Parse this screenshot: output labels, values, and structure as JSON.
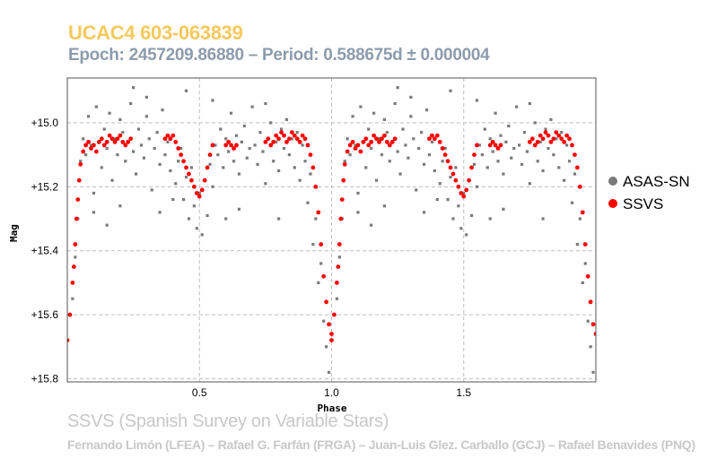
{
  "header": {
    "title": "UCAC4 603-063839",
    "subtitle": "Epoch: 2457209.86880 – Period: 0.588675d ± 0.000004",
    "title_color": "#f5c95b",
    "subtitle_color": "#8c9cad"
  },
  "footer": {
    "line1": "SSVS (Spanish Survey on Variable Stars)",
    "line2": "Fernando Limón (LFEA) – Rafael G. Farfán (FRGA) – Juan-Luis Glez. Carballo (GCJ) – Rafael Benavides (PNQ)",
    "color": "#c8c8c8"
  },
  "chart_data": {
    "type": "scatter",
    "xlabel": "Phase",
    "ylabel": "Mag",
    "xlim": [
      0.0,
      2.0
    ],
    "ylim": [
      15.81,
      14.86
    ],
    "y_inverted": true,
    "x_ticks": [
      0.5,
      1.0,
      1.5
    ],
    "x_tick_labels": [
      "0.5",
      "1.0",
      "1.5"
    ],
    "y_ticks": [
      15.0,
      15.2,
      15.4,
      15.6,
      15.8
    ],
    "y_tick_labels": [
      "+15.0",
      "+15.2",
      "+15.4",
      "+15.6",
      "+15.8"
    ],
    "grid": true,
    "legend_position": "right",
    "series": [
      {
        "name": "ASAS-SN",
        "color": "#7a7a7a",
        "marker": "square",
        "points": [
          [
            0.02,
            15.55
          ],
          [
            0.03,
            15.42
          ],
          [
            0.04,
            15.3
          ],
          [
            0.05,
            15.12
          ],
          [
            0.06,
            15.05
          ],
          [
            0.07,
            15.1
          ],
          [
            0.08,
            14.98
          ],
          [
            0.09,
            15.07
          ],
          [
            0.1,
            15.22
          ],
          [
            0.11,
            14.95
          ],
          [
            0.12,
            15.06
          ],
          [
            0.13,
            15.14
          ],
          [
            0.14,
            15.02
          ],
          [
            0.15,
            15.08
          ],
          [
            0.16,
            14.97
          ],
          [
            0.17,
            15.18
          ],
          [
            0.18,
            15.05
          ],
          [
            0.19,
            15.1
          ],
          [
            0.2,
            14.99
          ],
          [
            0.21,
            15.03
          ],
          [
            0.22,
            15.12
          ],
          [
            0.23,
            15.06
          ],
          [
            0.24,
            14.94
          ],
          [
            0.25,
            15.09
          ],
          [
            0.26,
            15.16
          ],
          [
            0.27,
            15.02
          ],
          [
            0.28,
            15.07
          ],
          [
            0.29,
            15.11
          ],
          [
            0.3,
            14.98
          ],
          [
            0.31,
            15.05
          ],
          [
            0.32,
            15.21
          ],
          [
            0.33,
            15.08
          ],
          [
            0.34,
            15.03
          ],
          [
            0.35,
            15.13
          ],
          [
            0.36,
            14.96
          ],
          [
            0.37,
            15.1
          ],
          [
            0.38,
            15.06
          ],
          [
            0.39,
            15.15
          ],
          [
            0.4,
            15.04
          ],
          [
            0.41,
            15.19
          ],
          [
            0.42,
            15.12
          ],
          [
            0.43,
            15.08
          ],
          [
            0.44,
            15.24
          ],
          [
            0.45,
            15.17
          ],
          [
            0.46,
            15.3
          ],
          [
            0.47,
            15.14
          ],
          [
            0.48,
            15.26
          ],
          [
            0.49,
            15.33
          ],
          [
            0.5,
            15.22
          ],
          [
            0.51,
            15.35
          ],
          [
            0.52,
            15.18
          ],
          [
            0.53,
            15.29
          ],
          [
            0.54,
            15.13
          ],
          [
            0.55,
            15.2
          ],
          [
            0.56,
            15.07
          ],
          [
            0.57,
            15.1
          ],
          [
            0.58,
            15.02
          ],
          [
            0.59,
            15.14
          ],
          [
            0.6,
            15.05
          ],
          [
            0.61,
            15.09
          ],
          [
            0.62,
            14.97
          ],
          [
            0.63,
            15.12
          ],
          [
            0.64,
            15.04
          ],
          [
            0.65,
            15.16
          ],
          [
            0.66,
            15.06
          ],
          [
            0.67,
            15.01
          ],
          [
            0.68,
            15.11
          ],
          [
            0.69,
            15.08
          ],
          [
            0.7,
            14.95
          ],
          [
            0.71,
            15.07
          ],
          [
            0.72,
            15.13
          ],
          [
            0.73,
            15.03
          ],
          [
            0.74,
            15.09
          ],
          [
            0.75,
            15.19
          ],
          [
            0.76,
            15.05
          ],
          [
            0.77,
            15.0
          ],
          [
            0.78,
            15.12
          ],
          [
            0.79,
            15.06
          ],
          [
            0.8,
            15.15
          ],
          [
            0.81,
            15.02
          ],
          [
            0.82,
            15.08
          ],
          [
            0.83,
            14.99
          ],
          [
            0.84,
            15.1
          ],
          [
            0.85,
            15.05
          ],
          [
            0.86,
            15.14
          ],
          [
            0.87,
            15.03
          ],
          [
            0.88,
            15.18
          ],
          [
            0.89,
            15.07
          ],
          [
            0.9,
            15.12
          ],
          [
            0.91,
            15.25
          ],
          [
            0.92,
            15.16
          ],
          [
            0.93,
            15.38
          ],
          [
            0.94,
            15.3
          ],
          [
            0.95,
            15.5
          ],
          [
            0.96,
            15.44
          ],
          [
            0.97,
            15.62
          ],
          [
            0.98,
            15.7
          ],
          [
            0.99,
            15.78
          ],
          [
            0.2,
            15.26
          ],
          [
            0.35,
            15.28
          ],
          [
            0.6,
            15.3
          ],
          [
            0.15,
            15.32
          ],
          [
            0.4,
            15.24
          ],
          [
            0.65,
            15.27
          ],
          [
            0.8,
            15.3
          ],
          [
            0.1,
            15.28
          ],
          [
            0.3,
            14.92
          ],
          [
            0.55,
            14.93
          ],
          [
            0.75,
            14.94
          ],
          [
            0.45,
            14.9
          ],
          [
            0.25,
            14.89
          ]
        ]
      },
      {
        "name": "SSVS",
        "color": "#ff0000",
        "marker": "circle",
        "points": [
          [
            0.0,
            15.68
          ],
          [
            0.01,
            15.6
          ],
          [
            0.02,
            15.5
          ],
          [
            0.025,
            15.45
          ],
          [
            0.03,
            15.38
          ],
          [
            0.035,
            15.3
          ],
          [
            0.04,
            15.24
          ],
          [
            0.045,
            15.18
          ],
          [
            0.05,
            15.13
          ],
          [
            0.06,
            15.09
          ],
          [
            0.07,
            15.07
          ],
          [
            0.08,
            15.06
          ],
          [
            0.09,
            15.08
          ],
          [
            0.1,
            15.07
          ],
          [
            0.11,
            15.09
          ],
          [
            0.12,
            15.06
          ],
          [
            0.13,
            15.05
          ],
          [
            0.14,
            15.07
          ],
          [
            0.15,
            15.06
          ],
          [
            0.16,
            15.04
          ],
          [
            0.17,
            15.05
          ],
          [
            0.18,
            15.06
          ],
          [
            0.19,
            15.05
          ],
          [
            0.2,
            15.04
          ],
          [
            0.21,
            15.06
          ],
          [
            0.22,
            15.07
          ],
          [
            0.23,
            15.06
          ],
          [
            0.24,
            15.05
          ],
          [
            0.37,
            15.05
          ],
          [
            0.38,
            15.04
          ],
          [
            0.39,
            15.05
          ],
          [
            0.4,
            15.04
          ],
          [
            0.41,
            15.06
          ],
          [
            0.42,
            15.08
          ],
          [
            0.43,
            15.1
          ],
          [
            0.44,
            15.12
          ],
          [
            0.45,
            15.14
          ],
          [
            0.46,
            15.16
          ],
          [
            0.47,
            15.18
          ],
          [
            0.48,
            15.2
          ],
          [
            0.49,
            15.22
          ],
          [
            0.5,
            15.23
          ],
          [
            0.51,
            15.21
          ],
          [
            0.52,
            15.18
          ],
          [
            0.53,
            15.14
          ],
          [
            0.54,
            15.1
          ],
          [
            0.55,
            15.07
          ],
          [
            0.6,
            15.07
          ],
          [
            0.61,
            15.06
          ],
          [
            0.62,
            15.07
          ],
          [
            0.63,
            15.08
          ],
          [
            0.64,
            15.07
          ],
          [
            0.75,
            15.06
          ],
          [
            0.76,
            15.05
          ],
          [
            0.77,
            15.07
          ],
          [
            0.78,
            15.06
          ],
          [
            0.79,
            15.04
          ],
          [
            0.8,
            15.05
          ],
          [
            0.81,
            15.03
          ],
          [
            0.82,
            15.04
          ],
          [
            0.83,
            15.06
          ],
          [
            0.84,
            15.05
          ],
          [
            0.85,
            15.03
          ],
          [
            0.86,
            15.04
          ],
          [
            0.87,
            15.05
          ],
          [
            0.88,
            15.06
          ],
          [
            0.89,
            15.04
          ],
          [
            0.9,
            15.05
          ],
          [
            0.91,
            15.07
          ],
          [
            0.92,
            15.1
          ],
          [
            0.93,
            15.14
          ],
          [
            0.94,
            15.2
          ],
          [
            0.95,
            15.28
          ],
          [
            0.96,
            15.38
          ],
          [
            0.97,
            15.48
          ],
          [
            0.98,
            15.56
          ],
          [
            0.99,
            15.63
          ],
          [
            1.0,
            15.66
          ]
        ]
      }
    ]
  },
  "legend": {
    "items": [
      {
        "label": "ASAS-SN",
        "color": "#7a7a7a"
      },
      {
        "label": "SSVS",
        "color": "#ff0000"
      }
    ]
  }
}
